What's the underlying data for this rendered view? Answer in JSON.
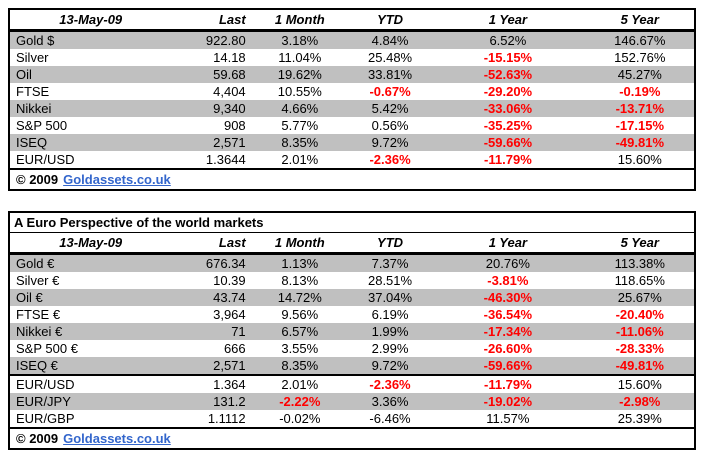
{
  "colors": {
    "stripe_gray": "#c0c0c0",
    "negative_red": "#ff0000",
    "link_blue": "#3366cc",
    "border_black": "#000000"
  },
  "columns": [
    "13-May-09",
    "Last",
    "1 Month",
    "YTD",
    "1 Year",
    "5 Year"
  ],
  "tables": [
    {
      "name": "dollar-perspective",
      "title": null,
      "sections": [
        [
          {
            "name": "Gold $",
            "cells": [
              {
                "v": "922.80"
              },
              {
                "v": "3.18%"
              },
              {
                "v": "4.84%"
              },
              {
                "v": "6.52%"
              },
              {
                "v": "146.67%"
              }
            ]
          },
          {
            "name": "Silver",
            "cells": [
              {
                "v": "14.18"
              },
              {
                "v": "11.04%"
              },
              {
                "v": "25.48%"
              },
              {
                "v": "-15.15%",
                "neg": true
              },
              {
                "v": "152.76%"
              }
            ]
          },
          {
            "name": "Oil",
            "cells": [
              {
                "v": "59.68"
              },
              {
                "v": "19.62%"
              },
              {
                "v": "33.81%"
              },
              {
                "v": "-52.63%",
                "neg": true
              },
              {
                "v": "45.27%"
              }
            ]
          },
          {
            "name": "FTSE",
            "cells": [
              {
                "v": "4,404"
              },
              {
                "v": "10.55%"
              },
              {
                "v": "-0.67%",
                "neg": true
              },
              {
                "v": "-29.20%",
                "neg": true
              },
              {
                "v": "-0.19%",
                "neg": true
              }
            ]
          },
          {
            "name": "Nikkei",
            "cells": [
              {
                "v": "9,340"
              },
              {
                "v": "4.66%"
              },
              {
                "v": "5.42%"
              },
              {
                "v": "-33.06%",
                "neg": true
              },
              {
                "v": "-13.71%",
                "neg": true
              }
            ]
          },
          {
            "name": "S&P 500",
            "cells": [
              {
                "v": "908"
              },
              {
                "v": "5.77%"
              },
              {
                "v": "0.56%"
              },
              {
                "v": "-35.25%",
                "neg": true
              },
              {
                "v": "-17.15%",
                "neg": true
              }
            ]
          },
          {
            "name": "ISEQ",
            "cells": [
              {
                "v": "2,571"
              },
              {
                "v": "8.35%"
              },
              {
                "v": "9.72%"
              },
              {
                "v": "-59.66%",
                "neg": true
              },
              {
                "v": "-49.81%",
                "neg": true
              }
            ]
          },
          {
            "name": "EUR/USD",
            "cells": [
              {
                "v": "1.3644"
              },
              {
                "v": "2.01%"
              },
              {
                "v": "-2.36%",
                "neg": true
              },
              {
                "v": "-11.79%",
                "neg": true
              },
              {
                "v": "15.60%"
              }
            ]
          }
        ]
      ],
      "footer": {
        "copyright": "© 2009",
        "link": "Goldassets.co.uk"
      }
    },
    {
      "name": "euro-perspective",
      "title": "A Euro Perspective of the world markets",
      "sections": [
        [
          {
            "name": "Gold €",
            "cells": [
              {
                "v": "676.34"
              },
              {
                "v": "1.13%"
              },
              {
                "v": "7.37%"
              },
              {
                "v": "20.76%"
              },
              {
                "v": "113.38%"
              }
            ]
          },
          {
            "name": "Silver €",
            "cells": [
              {
                "v": "10.39"
              },
              {
                "v": "8.13%"
              },
              {
                "v": "28.51%"
              },
              {
                "v": "-3.81%",
                "neg": true
              },
              {
                "v": "118.65%"
              }
            ]
          },
          {
            "name": "Oil €",
            "cells": [
              {
                "v": "43.74"
              },
              {
                "v": "14.72%"
              },
              {
                "v": "37.04%"
              },
              {
                "v": "-46.30%",
                "neg": true
              },
              {
                "v": "25.67%"
              }
            ]
          },
          {
            "name": "FTSE €",
            "cells": [
              {
                "v": "3,964"
              },
              {
                "v": "9.56%"
              },
              {
                "v": "6.19%"
              },
              {
                "v": "-36.54%",
                "neg": true
              },
              {
                "v": "-20.40%",
                "neg": true
              }
            ]
          },
          {
            "name": "Nikkei €",
            "cells": [
              {
                "v": "71"
              },
              {
                "v": "6.57%"
              },
              {
                "v": "1.99%"
              },
              {
                "v": "-17.34%",
                "neg": true
              },
              {
                "v": "-11.06%",
                "neg": true
              }
            ]
          },
          {
            "name": "S&P 500 €",
            "cells": [
              {
                "v": "666"
              },
              {
                "v": "3.55%"
              },
              {
                "v": "2.99%"
              },
              {
                "v": "-26.60%",
                "neg": true
              },
              {
                "v": "-28.33%",
                "neg": true
              }
            ]
          },
          {
            "name": "ISEQ €",
            "cells": [
              {
                "v": "2,571"
              },
              {
                "v": "8.35%"
              },
              {
                "v": "9.72%"
              },
              {
                "v": "-59.66%",
                "neg": true
              },
              {
                "v": "-49.81%",
                "neg": true
              }
            ]
          }
        ],
        [
          {
            "name": "EUR/USD",
            "cells": [
              {
                "v": "1.364"
              },
              {
                "v": "2.01%"
              },
              {
                "v": "-2.36%",
                "neg": true
              },
              {
                "v": "-11.79%",
                "neg": true
              },
              {
                "v": "15.60%"
              }
            ]
          },
          {
            "name": "EUR/JPY",
            "cells": [
              {
                "v": "131.2"
              },
              {
                "v": "-2.22%",
                "neg": true
              },
              {
                "v": "3.36%"
              },
              {
                "v": "-19.02%",
                "neg": true
              },
              {
                "v": "-2.98%",
                "neg": true
              }
            ]
          },
          {
            "name": "EUR/GBP",
            "cells": [
              {
                "v": "1.1112"
              },
              {
                "v": "-0.02%"
              },
              {
                "v": "-6.46%"
              },
              {
                "v": "11.57%"
              },
              {
                "v": "25.39%"
              }
            ]
          }
        ]
      ],
      "footer": {
        "copyright": "© 2009",
        "link": "Goldassets.co.uk"
      }
    }
  ]
}
